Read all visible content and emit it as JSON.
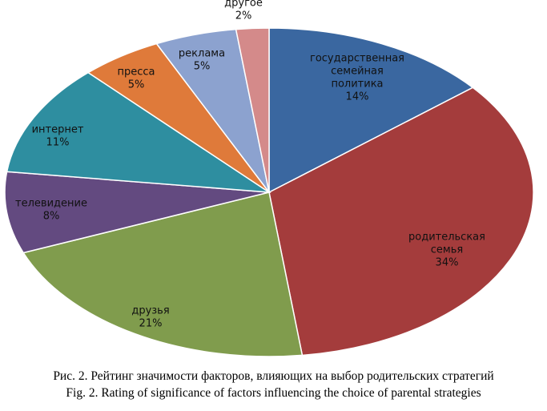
{
  "chart_data": {
    "type": "pie",
    "slices": [
      {
        "label": [
          "государственная",
          "семейная",
          "политика"
        ],
        "percent_label": "14%",
        "value": 14,
        "color": "#3a67a0"
      },
      {
        "label": [
          "родительская",
          "семья"
        ],
        "percent_label": "34%",
        "value": 34,
        "color": "#a43c3c"
      },
      {
        "label": [
          "друзья"
        ],
        "percent_label": "21%",
        "value": 21,
        "color": "#809c4d"
      },
      {
        "label": [
          "телевидение"
        ],
        "percent_label": "8%",
        "value": 8,
        "color": "#634a80"
      },
      {
        "label": [
          "интернет"
        ],
        "percent_label": "11%",
        "value": 11,
        "color": "#2e8ea0"
      },
      {
        "label": [
          "пресса"
        ],
        "percent_label": "5%",
        "value": 5,
        "color": "#df7a3a"
      },
      {
        "label": [
          "реклама"
        ],
        "percent_label": "5%",
        "value": 5,
        "color": "#8ca2cf"
      },
      {
        "label": [
          "другое"
        ],
        "percent_label": "2%",
        "value": 2,
        "color": "#d48a8a"
      }
    ],
    "start_angle_deg": 0,
    "direction": "clockwise",
    "legend": "none"
  },
  "caption": {
    "ru_prefix": "Рис. 2.",
    "ru_text": " Рейтинг значимости факторов, влияющих на выбор родительских стратегий",
    "en_text": "Fig. 2. Rating of significance of factors influencing the choice of parental strategies"
  }
}
